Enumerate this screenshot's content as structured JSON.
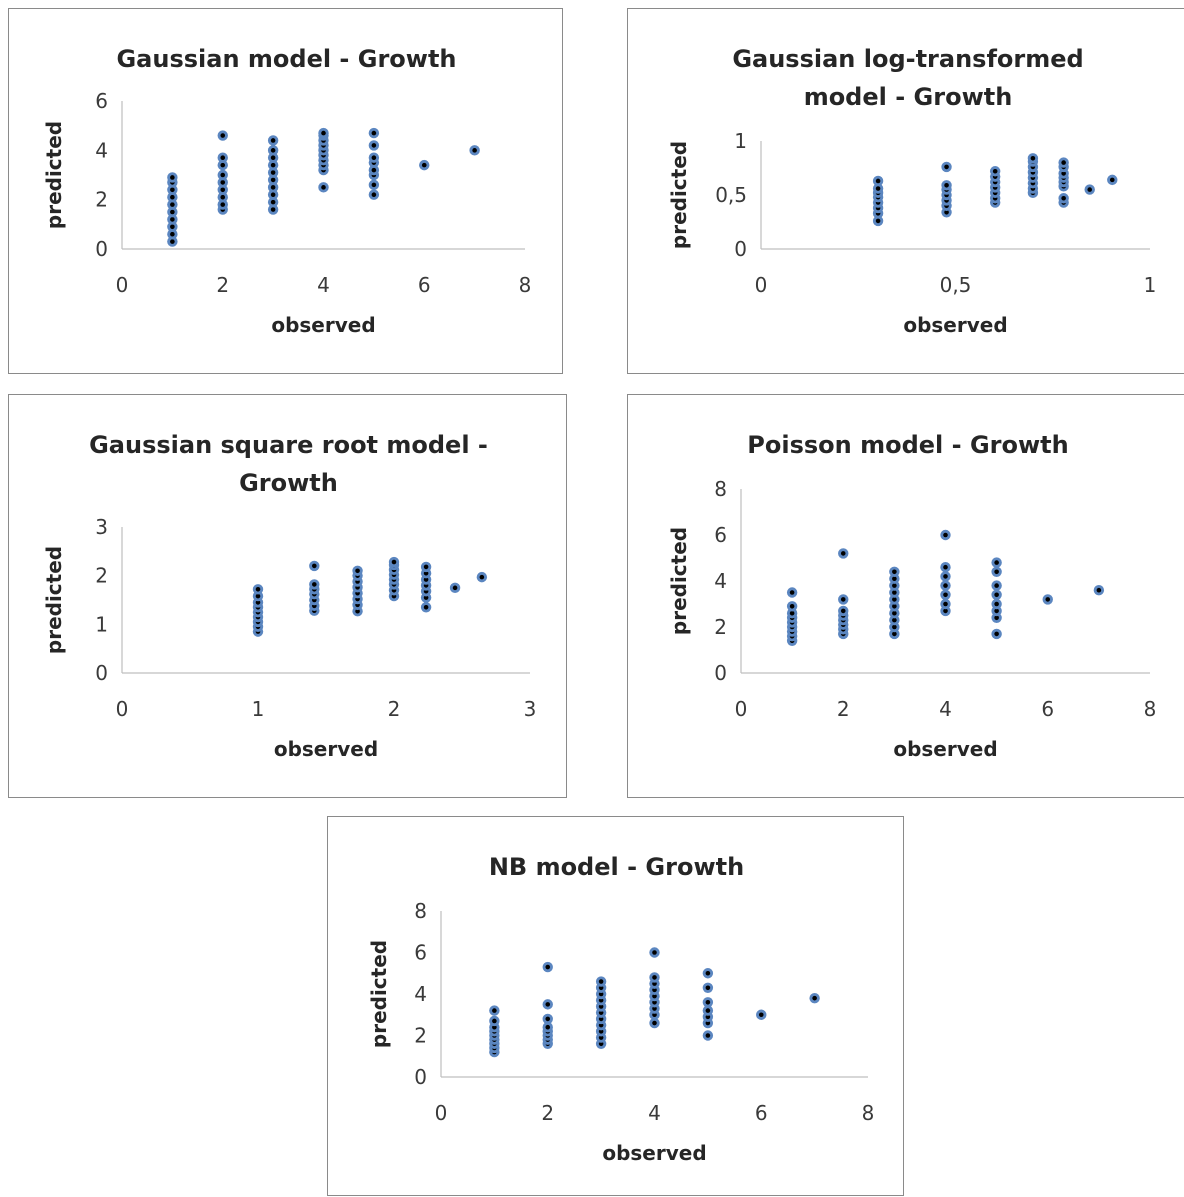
{
  "colors": {
    "marker_fill": "#5b86c0",
    "marker_core": "#000000",
    "axis": "#bfbfbf",
    "text": "#262626"
  },
  "chart_data": [
    {
      "type": "scatter",
      "title": [
        "Gaussian model - Growth"
      ],
      "xlabel": "observed",
      "ylabel": "predicted",
      "xlim": [
        0,
        8
      ],
      "ylim": [
        0,
        6
      ],
      "xticks": [
        "0",
        "2",
        "4",
        "6",
        "8"
      ],
      "yticks": [
        "0",
        "2",
        "4",
        "6"
      ],
      "grid": false,
      "legend": "none",
      "series": [
        {
          "points": [
            [
              1,
              0.3
            ],
            [
              1,
              0.6
            ],
            [
              1,
              0.9
            ],
            [
              1,
              1.2
            ],
            [
              1,
              1.5
            ],
            [
              1,
              1.8
            ],
            [
              1,
              2.1
            ],
            [
              1,
              2.4
            ],
            [
              1,
              2.7
            ],
            [
              1,
              2.9
            ],
            [
              2,
              1.6
            ],
            [
              2,
              1.8
            ],
            [
              2,
              2.1
            ],
            [
              2,
              2.4
            ],
            [
              2,
              2.7
            ],
            [
              2,
              3.0
            ],
            [
              2,
              3.4
            ],
            [
              2,
              3.7
            ],
            [
              2,
              4.6
            ],
            [
              3,
              1.6
            ],
            [
              3,
              1.9
            ],
            [
              3,
              2.2
            ],
            [
              3,
              2.5
            ],
            [
              3,
              2.8
            ],
            [
              3,
              3.1
            ],
            [
              3,
              3.4
            ],
            [
              3,
              3.7
            ],
            [
              3,
              4.0
            ],
            [
              3,
              4.4
            ],
            [
              4,
              2.5
            ],
            [
              4,
              3.2
            ],
            [
              4,
              3.4
            ],
            [
              4,
              3.6
            ],
            [
              4,
              3.8
            ],
            [
              4,
              4.0
            ],
            [
              4,
              4.2
            ],
            [
              4,
              4.4
            ],
            [
              4,
              4.6
            ],
            [
              4,
              4.7
            ],
            [
              5,
              2.2
            ],
            [
              5,
              2.6
            ],
            [
              5,
              3.0
            ],
            [
              5,
              3.2
            ],
            [
              5,
              3.5
            ],
            [
              5,
              3.7
            ],
            [
              5,
              4.2
            ],
            [
              5,
              4.7
            ],
            [
              6,
              3.4
            ],
            [
              7,
              4.0
            ]
          ]
        }
      ]
    },
    {
      "type": "scatter",
      "title": [
        "Gaussian  log-transformed",
        "model - Growth"
      ],
      "xlabel": "observed",
      "ylabel": "predicted",
      "xlim": [
        0,
        1
      ],
      "ylim": [
        0,
        1
      ],
      "xticks": [
        "0",
        "0,5",
        "1"
      ],
      "yticks": [
        "0",
        "0,5",
        "1"
      ],
      "grid": false,
      "legend": "none",
      "series": [
        {
          "points": [
            [
              0.301,
              0.26
            ],
            [
              0.301,
              0.33
            ],
            [
              0.301,
              0.38
            ],
            [
              0.301,
              0.43
            ],
            [
              0.301,
              0.48
            ],
            [
              0.301,
              0.52
            ],
            [
              0.301,
              0.56
            ],
            [
              0.301,
              0.63
            ],
            [
              0.477,
              0.34
            ],
            [
              0.477,
              0.4
            ],
            [
              0.477,
              0.45
            ],
            [
              0.477,
              0.5
            ],
            [
              0.477,
              0.55
            ],
            [
              0.477,
              0.59
            ],
            [
              0.477,
              0.76
            ],
            [
              0.602,
              0.43
            ],
            [
              0.602,
              0.47
            ],
            [
              0.602,
              0.52
            ],
            [
              0.602,
              0.57
            ],
            [
              0.602,
              0.62
            ],
            [
              0.602,
              0.67
            ],
            [
              0.602,
              0.72
            ],
            [
              0.699,
              0.52
            ],
            [
              0.699,
              0.56
            ],
            [
              0.699,
              0.61
            ],
            [
              0.699,
              0.66
            ],
            [
              0.699,
              0.71
            ],
            [
              0.699,
              0.76
            ],
            [
              0.699,
              0.81
            ],
            [
              0.699,
              0.84
            ],
            [
              0.778,
              0.43
            ],
            [
              0.778,
              0.47
            ],
            [
              0.778,
              0.58
            ],
            [
              0.778,
              0.62
            ],
            [
              0.778,
              0.66
            ],
            [
              0.778,
              0.7
            ],
            [
              0.778,
              0.76
            ],
            [
              0.778,
              0.8
            ],
            [
              0.845,
              0.55
            ],
            [
              0.903,
              0.64
            ]
          ]
        }
      ]
    },
    {
      "type": "scatter",
      "title": [
        "Gaussian square root model -",
        "Growth"
      ],
      "xlabel": "observed",
      "ylabel": "predicted",
      "xlim": [
        0,
        3
      ],
      "ylim": [
        0,
        3
      ],
      "xticks": [
        "0",
        "1",
        "2",
        "3"
      ],
      "yticks": [
        "0",
        "1",
        "2",
        "3"
      ],
      "grid": false,
      "legend": "none",
      "series": [
        {
          "points": [
            [
              1,
              0.85
            ],
            [
              1,
              0.95
            ],
            [
              1,
              1.05
            ],
            [
              1,
              1.15
            ],
            [
              1,
              1.25
            ],
            [
              1,
              1.35
            ],
            [
              1,
              1.45
            ],
            [
              1,
              1.58
            ],
            [
              1,
              1.72
            ],
            [
              1.414,
              1.28
            ],
            [
              1.414,
              1.38
            ],
            [
              1.414,
              1.5
            ],
            [
              1.414,
              1.62
            ],
            [
              1.414,
              1.72
            ],
            [
              1.414,
              1.82
            ],
            [
              1.414,
              2.2
            ],
            [
              1.732,
              1.27
            ],
            [
              1.732,
              1.4
            ],
            [
              1.732,
              1.52
            ],
            [
              1.732,
              1.64
            ],
            [
              1.732,
              1.76
            ],
            [
              1.732,
              1.88
            ],
            [
              1.732,
              2.0
            ],
            [
              1.732,
              2.1
            ],
            [
              2,
              1.58
            ],
            [
              2,
              1.7
            ],
            [
              2,
              1.82
            ],
            [
              2,
              1.92
            ],
            [
              2,
              2.02
            ],
            [
              2,
              2.12
            ],
            [
              2,
              2.22
            ],
            [
              2,
              2.28
            ],
            [
              2.236,
              1.35
            ],
            [
              2.236,
              1.55
            ],
            [
              2.236,
              1.68
            ],
            [
              2.236,
              1.8
            ],
            [
              2.236,
              1.92
            ],
            [
              2.236,
              2.05
            ],
            [
              2.236,
              2.18
            ],
            [
              2.449,
              1.75
            ],
            [
              2.646,
              1.97
            ]
          ]
        }
      ]
    },
    {
      "type": "scatter",
      "title": [
        "Poisson model - Growth"
      ],
      "xlabel": "observed",
      "ylabel": "predicted",
      "xlim": [
        0,
        8
      ],
      "ylim": [
        0,
        8
      ],
      "xticks": [
        "0",
        "2",
        "4",
        "6",
        "8"
      ],
      "yticks": [
        "0",
        "2",
        "4",
        "6",
        "8"
      ],
      "grid": false,
      "legend": "none",
      "series": [
        {
          "points": [
            [
              1,
              1.4
            ],
            [
              1,
              1.6
            ],
            [
              1,
              1.8
            ],
            [
              1,
              2.0
            ],
            [
              1,
              2.2
            ],
            [
              1,
              2.4
            ],
            [
              1,
              2.6
            ],
            [
              1,
              2.9
            ],
            [
              1,
              3.5
            ],
            [
              2,
              1.7
            ],
            [
              2,
              1.9
            ],
            [
              2,
              2.1
            ],
            [
              2,
              2.3
            ],
            [
              2,
              2.5
            ],
            [
              2,
              2.7
            ],
            [
              2,
              3.2
            ],
            [
              2,
              5.2
            ],
            [
              3,
              1.7
            ],
            [
              3,
              2.0
            ],
            [
              3,
              2.3
            ],
            [
              3,
              2.6
            ],
            [
              3,
              2.9
            ],
            [
              3,
              3.2
            ],
            [
              3,
              3.5
            ],
            [
              3,
              3.8
            ],
            [
              3,
              4.1
            ],
            [
              3,
              4.4
            ],
            [
              4,
              2.7
            ],
            [
              4,
              3.0
            ],
            [
              4,
              3.4
            ],
            [
              4,
              3.8
            ],
            [
              4,
              4.2
            ],
            [
              4,
              4.6
            ],
            [
              4,
              6.0
            ],
            [
              5,
              1.7
            ],
            [
              5,
              2.4
            ],
            [
              5,
              2.7
            ],
            [
              5,
              3.0
            ],
            [
              5,
              3.4
            ],
            [
              5,
              3.8
            ],
            [
              5,
              4.4
            ],
            [
              5,
              4.8
            ],
            [
              6,
              3.2
            ],
            [
              7,
              3.6
            ]
          ]
        }
      ]
    },
    {
      "type": "scatter",
      "title": [
        "NB model - Growth"
      ],
      "xlabel": "observed",
      "ylabel": "predicted",
      "xlim": [
        0,
        8
      ],
      "ylim": [
        0,
        8
      ],
      "xticks": [
        "0",
        "2",
        "4",
        "6",
        "8"
      ],
      "yticks": [
        "0",
        "2",
        "4",
        "6",
        "8"
      ],
      "grid": false,
      "legend": "none",
      "series": [
        {
          "points": [
            [
              1,
              1.2
            ],
            [
              1,
              1.4
            ],
            [
              1,
              1.6
            ],
            [
              1,
              1.8
            ],
            [
              1,
              2.0
            ],
            [
              1,
              2.2
            ],
            [
              1,
              2.4
            ],
            [
              1,
              2.7
            ],
            [
              1,
              3.2
            ],
            [
              2,
              1.6
            ],
            [
              2,
              1.8
            ],
            [
              2,
              2.0
            ],
            [
              2,
              2.2
            ],
            [
              2,
              2.4
            ],
            [
              2,
              2.8
            ],
            [
              2,
              3.5
            ],
            [
              2,
              5.3
            ],
            [
              3,
              1.6
            ],
            [
              3,
              1.9
            ],
            [
              3,
              2.2
            ],
            [
              3,
              2.5
            ],
            [
              3,
              2.8
            ],
            [
              3,
              3.1
            ],
            [
              3,
              3.4
            ],
            [
              3,
              3.7
            ],
            [
              3,
              4.0
            ],
            [
              3,
              4.3
            ],
            [
              3,
              4.6
            ],
            [
              4,
              2.6
            ],
            [
              4,
              3.0
            ],
            [
              4,
              3.3
            ],
            [
              4,
              3.6
            ],
            [
              4,
              3.9
            ],
            [
              4,
              4.2
            ],
            [
              4,
              4.5
            ],
            [
              4,
              4.8
            ],
            [
              4,
              6.0
            ],
            [
              5,
              2.0
            ],
            [
              5,
              2.6
            ],
            [
              5,
              2.9
            ],
            [
              5,
              3.2
            ],
            [
              5,
              3.6
            ],
            [
              5,
              4.3
            ],
            [
              5,
              5.0
            ],
            [
              6,
              3.0
            ],
            [
              7,
              3.8
            ]
          ]
        }
      ]
    }
  ]
}
